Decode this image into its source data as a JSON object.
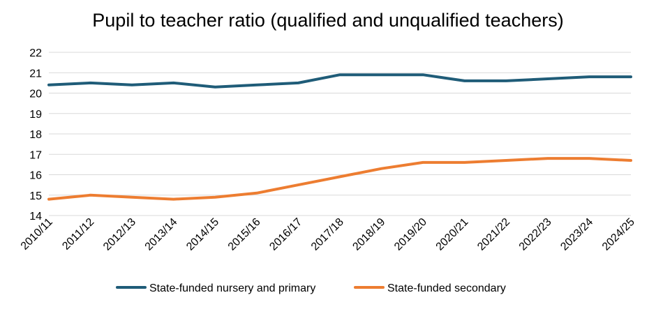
{
  "chart_data": {
    "type": "line",
    "title": "Pupil to teacher ratio (qualified and unqualified teachers)",
    "xlabel": "",
    "ylabel": "",
    "categories": [
      "2010/11",
      "2011/12",
      "2012/13",
      "2013/14",
      "2014/15",
      "2015/16",
      "2016/17",
      "2017/18",
      "2018/19",
      "2019/20",
      "2020/21",
      "2021/22",
      "2022/23",
      "2023/24",
      "2024/25"
    ],
    "ylim": [
      14,
      22
    ],
    "yticks": [
      "14",
      "15",
      "16",
      "17",
      "18",
      "19",
      "20",
      "21",
      "22"
    ],
    "grid": true,
    "legend_position": "bottom",
    "series": [
      {
        "name": "State-funded nursery and primary",
        "color": "#1f5c78",
        "values": [
          20.4,
          20.5,
          20.4,
          20.5,
          20.3,
          20.4,
          20.5,
          20.9,
          20.9,
          20.9,
          20.6,
          20.6,
          20.7,
          20.8,
          20.8
        ]
      },
      {
        "name": "State-funded secondary",
        "color": "#ed7d31",
        "values": [
          14.8,
          15.0,
          14.9,
          14.8,
          14.9,
          15.1,
          15.5,
          15.9,
          16.3,
          16.6,
          16.6,
          16.7,
          16.8,
          16.8,
          16.7
        ]
      }
    ]
  }
}
